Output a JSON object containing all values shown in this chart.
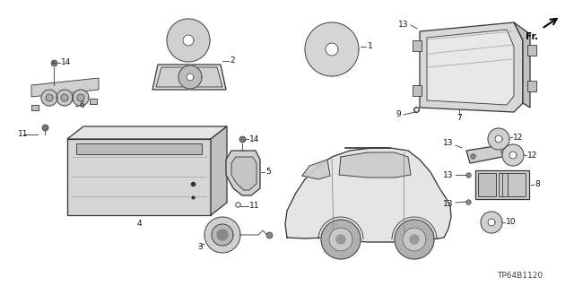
{
  "background_color": "#ffffff",
  "line_color": "#333333",
  "label_color": "#111111",
  "part_code": "TP64B1120",
  "figsize": [
    6.4,
    3.19
  ],
  "dpi": 100
}
